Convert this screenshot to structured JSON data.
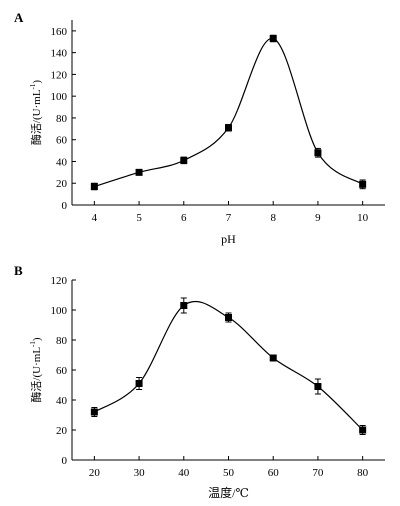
{
  "chart_data": [
    {
      "panel": "A",
      "type": "line",
      "xlabel": "pH",
      "ylabel": {
        "base": "酶活/(U·mL",
        "sup": "-1",
        "close": ")"
      },
      "x": [
        4,
        5,
        6,
        7,
        8,
        9,
        10
      ],
      "xticks": [
        "4",
        "5",
        "6",
        "7",
        "8",
        "9",
        "10"
      ],
      "xlim": [
        3.5,
        10.5
      ],
      "ylim": [
        0,
        170
      ],
      "yticks": [
        "0",
        "20",
        "40",
        "60",
        "80",
        "100",
        "120",
        "140",
        "160"
      ],
      "series": [
        {
          "values": [
            17,
            30,
            41,
            71,
            153,
            48,
            19
          ],
          "errors": [
            3,
            2,
            3,
            3,
            3,
            4,
            4
          ]
        }
      ]
    },
    {
      "panel": "B",
      "type": "line",
      "xlabel": "温度/℃",
      "ylabel": {
        "base": "酶活/(U·mL",
        "sup": "-1",
        "close": ")"
      },
      "x": [
        20,
        30,
        40,
        50,
        60,
        70,
        80
      ],
      "xticks": [
        "20",
        "30",
        "40",
        "50",
        "60",
        "70",
        "80"
      ],
      "xlim": [
        15,
        85
      ],
      "ylim": [
        0,
        120
      ],
      "yticks": [
        "0",
        "20",
        "40",
        "60",
        "80",
        "100",
        "120"
      ],
      "series": [
        {
          "values": [
            32,
            51,
            103,
            95,
            68,
            49,
            20
          ],
          "errors": [
            3,
            4,
            5,
            3,
            2,
            5,
            3
          ]
        }
      ]
    }
  ]
}
